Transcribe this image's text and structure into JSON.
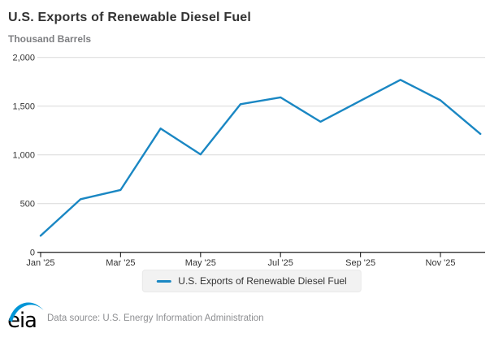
{
  "header": {
    "title": "U.S. Exports of Renewable Diesel Fuel",
    "subtitle": "Thousand Barrels"
  },
  "chart_data": {
    "type": "line",
    "title": "U.S. Exports of Renewable Diesel Fuel",
    "ylabel": "Thousand Barrels",
    "xlabel": "",
    "categories": [
      "Jan '25",
      "Feb '25",
      "Mar '25",
      "Apr '25",
      "May '25",
      "Jun '25",
      "Jul '25",
      "Aug '25",
      "Sep '25",
      "Oct '25",
      "Nov '25",
      "Dec '25"
    ],
    "series": [
      {
        "name": "U.S. Exports of Renewable Diesel Fuel",
        "values": [
          170,
          545,
          640,
          1270,
          1005,
          1520,
          1590,
          1340,
          1555,
          1770,
          1560,
          1215
        ]
      }
    ],
    "ylim": [
      0,
      2000
    ],
    "y_tick_interval": 500,
    "y_tick_labels": [
      "0",
      "500",
      "1,000",
      "1,500",
      "2,000"
    ],
    "x_tick_labels_shown": [
      "Jan '25",
      "Mar '25",
      "May '25",
      "Jul '25",
      "Sep '25",
      "Nov '25"
    ],
    "x_tick_every": 2,
    "grid": "horizontal",
    "legend_position": "bottom"
  },
  "legend": {
    "label": "U.S. Exports of Renewable Diesel Fuel"
  },
  "footer": {
    "logo_text": "eia",
    "data_source": "Data source: U.S. Energy Information Administration"
  },
  "colors": {
    "line": "#1a87c3",
    "grid": "#d9d9d9",
    "axis": "#333333",
    "tick_label": "#333333",
    "title": "#333333",
    "subtitle": "#7d7e81",
    "legend_bg": "#f2f2f2",
    "logo_swoosh": "#0096d7",
    "logo_text": "#000000",
    "source_text": "#8e8f92"
  }
}
